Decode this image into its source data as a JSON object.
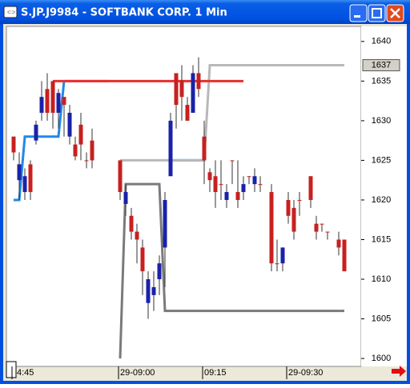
{
  "window": {
    "title": "S.JP.J9984 - SOFTBANK CORP. 1 Min"
  },
  "chart_data": {
    "type": "candlestick",
    "categories": [
      "4:45",
      null,
      null,
      null,
      null,
      null,
      null,
      null,
      null,
      null,
      null,
      null,
      null,
      null,
      null,
      null,
      null,
      null,
      null,
      "29-09:00",
      null,
      null,
      null,
      null,
      null,
      null,
      null,
      null,
      null,
      null,
      null,
      null,
      null,
      null,
      "09:15",
      null,
      null,
      null,
      null,
      null,
      null,
      null,
      null,
      null,
      null,
      null,
      null,
      null,
      null,
      "29-09:30",
      null,
      null,
      null,
      null,
      null,
      null,
      null,
      null,
      null,
      null
    ],
    "open": [
      1626,
      1624.5,
      1623,
      1621,
      1629.5,
      1633,
      1631,
      1631,
      1633.5,
      1632,
      1631,
      1625.5,
      1627,
      1625,
      1625,
      null,
      null,
      null,
      null,
      1621,
      1621,
      1616,
      1615,
      1611,
      1610,
      1609,
      1612,
      1620,
      1630,
      1632,
      1633,
      1630,
      1636,
      1634,
      1625,
      1622.5,
      1621,
      1622,
      1621,
      1625,
      1620,
      1622,
      1623,
      1623,
      1622,
      null,
      1612,
      1612,
      1614,
      1618,
      1616,
      1620,
      null,
      1620,
      1616,
      1617,
      1616,
      null,
      1614,
      1611
    ],
    "high": [
      1628,
      1626,
      1624,
      1625,
      1630,
      1635,
      1636,
      1635,
      1634,
      1633,
      1632,
      1628,
      1631,
      1626,
      1629,
      null,
      null,
      null,
      null,
      1625,
      1622,
      1619,
      1617,
      1615,
      1611,
      1611,
      1613,
      1621,
      1631,
      1636,
      1637,
      1633,
      1637,
      1638,
      1630,
      1624,
      1625,
      1625,
      1622,
      1625,
      1625,
      1623,
      1623,
      1624,
      1623,
      null,
      1622,
      1615,
      1614,
      1621,
      1620,
      1621,
      null,
      1623,
      1618,
      1617,
      1616,
      null,
      1616,
      1615
    ],
    "low": [
      1625,
      1620,
      1620,
      1620,
      1627,
      1630,
      1630,
      1629,
      1629,
      1628,
      1627,
      1625,
      1625,
      1624,
      1624,
      null,
      null,
      null,
      null,
      1620,
      1618,
      1615,
      1612,
      1608,
      1605,
      1606,
      1608,
      1609,
      1623,
      1629,
      1630,
      1630,
      1631,
      1633,
      1622,
      1621,
      1619,
      1620,
      1619,
      1622,
      1619,
      1620,
      1622,
      1621,
      1621,
      null,
      1611,
      1611,
      1611,
      1617,
      1615,
      1618,
      null,
      1619,
      1615,
      1616,
      1615,
      null,
      1613,
      1611
    ],
    "close": [
      1628,
      1622.5,
      1621,
      1624.5,
      1627.5,
      1631,
      1634,
      1635,
      1631,
      1633,
      1628,
      1627,
      1629.5,
      1625,
      1627.5,
      null,
      null,
      null,
      null,
      1625,
      1619.5,
      1618,
      1616,
      1614,
      1607,
      1608,
      1610,
      1614,
      1623,
      1636,
      1635,
      1632,
      1631,
      1636,
      1628,
      1623.5,
      1623,
      1622,
      1620,
      1625,
      1621,
      1621,
      1623,
      1622,
      1622,
      null,
      1621,
      1612,
      1612,
      1620,
      1619,
      1620,
      null,
      1623,
      1617,
      1617,
      1616,
      null,
      1615,
      1615
    ],
    "up_color": "#c82020",
    "down_color": "#1a22a8",
    "overlays": [
      {
        "color": "#1e8ae6",
        "values": [
          1620,
          1620,
          1628,
          1628,
          1628,
          1628,
          1628,
          1628,
          1628,
          1635,
          1635,
          1635,
          1635,
          1635,
          1635,
          1635,
          1635,
          1635,
          null,
          null,
          null,
          null,
          null,
          null,
          null,
          null,
          null,
          null,
          1625,
          1625,
          1625,
          1625,
          1625,
          1625,
          1625,
          null,
          null,
          null,
          null,
          null,
          null,
          null,
          null,
          null,
          null,
          null,
          null,
          null,
          null,
          null,
          null,
          null,
          null,
          null,
          null,
          null,
          null,
          null,
          null,
          null
        ]
      },
      {
        "color": "#b8b8b8",
        "values": [
          null,
          null,
          null,
          null,
          null,
          null,
          null,
          null,
          null,
          null,
          null,
          null,
          null,
          null,
          null,
          null,
          null,
          1635,
          null,
          1625,
          1625,
          1625,
          1625,
          1625,
          1625,
          1625,
          1625,
          1625,
          1625,
          1625,
          1625,
          1625,
          1625,
          1625,
          1625,
          1637,
          1637,
          1637,
          1637,
          1637,
          1637,
          1637,
          1637,
          1637,
          1637,
          1637,
          1637,
          1637,
          1637,
          1637,
          1637,
          1637,
          1637,
          1637,
          1637,
          1637,
          1637,
          1637,
          1637,
          1637
        ]
      },
      {
        "color": "#7a7a7a",
        "values": [
          null,
          null,
          null,
          null,
          null,
          null,
          null,
          null,
          null,
          null,
          null,
          null,
          null,
          null,
          null,
          null,
          null,
          null,
          null,
          1600,
          1622,
          1622,
          1622,
          1622,
          1622,
          1622,
          1622,
          1606,
          1606,
          1606,
          1606,
          1606,
          1606,
          1606,
          1606,
          1606,
          1606,
          1606,
          1606,
          1606,
          1606,
          1606,
          1606,
          1606,
          1606,
          1606,
          1606,
          1606,
          1606,
          1606,
          1606,
          1606,
          1606,
          1606,
          1606,
          1606,
          1606,
          1606,
          1606,
          1606
        ]
      },
      {
        "color": "#e83030",
        "values": [
          null,
          null,
          null,
          null,
          null,
          null,
          null,
          1635,
          1635,
          1635,
          1635,
          1635,
          1635,
          1635,
          1635,
          1635,
          1635,
          1635,
          1635,
          1635,
          1635,
          1635,
          1635,
          1635,
          1635,
          1635,
          1635,
          1635,
          1635,
          1635,
          1635,
          1635,
          1635,
          1635,
          1635,
          1635,
          1635,
          1635,
          1635,
          1635,
          1635,
          1635,
          null,
          null,
          null,
          null,
          null,
          null,
          null,
          null,
          null,
          null,
          null,
          null,
          null,
          null,
          null,
          null,
          null,
          null
        ]
      }
    ],
    "last_price": 1637,
    "ylim": [
      1599,
      1641.9
    ],
    "yticks": [
      1600,
      1605,
      1610,
      1615,
      1620,
      1625,
      1630,
      1635,
      1640
    ]
  }
}
